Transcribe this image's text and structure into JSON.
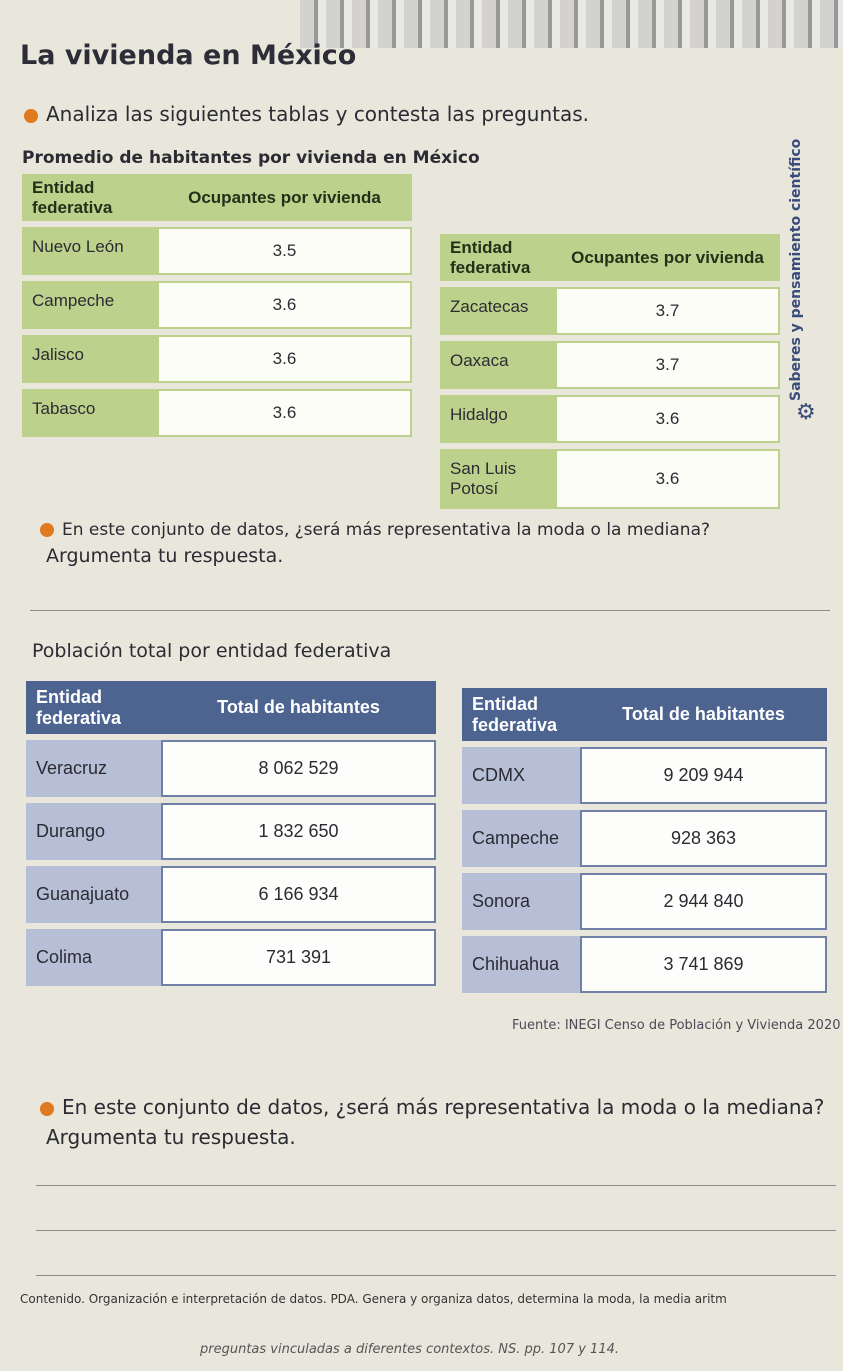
{
  "title": "La vivienda en México",
  "instruction": "Analiza las siguientes tablas y contesta las preguntas.",
  "section1": {
    "subtitle": "Promedio de habitantes por vivienda en México",
    "headers": {
      "entity": "Entidad federativa",
      "value": "Ocupantes por vivienda"
    },
    "left_rows": [
      {
        "entity": "Nuevo León",
        "value": "3.5"
      },
      {
        "entity": "Campeche",
        "value": "3.6"
      },
      {
        "entity": "Jalisco",
        "value": "3.6"
      },
      {
        "entity": "Tabasco",
        "value": "3.6"
      }
    ],
    "right_rows": [
      {
        "entity": "Zacatecas",
        "value": "3.7"
      },
      {
        "entity": "Oaxaca",
        "value": "3.7"
      },
      {
        "entity": "Hidalgo",
        "value": "3.6"
      },
      {
        "entity": "San Luis Potosí",
        "value": "3.6"
      }
    ],
    "question": "En este conjunto de datos, ¿será más representativa la moda o la mediana?",
    "question_2": "Argumenta tu respuesta."
  },
  "section2": {
    "subtitle": "Población total por entidad federativa",
    "headers": {
      "entity": "Entidad federativa",
      "value": "Total de habitantes"
    },
    "left_rows": [
      {
        "entity": "Veracruz",
        "value": "8 062 529"
      },
      {
        "entity": "Durango",
        "value": "1 832 650"
      },
      {
        "entity": "Guanajuato",
        "value": "6 166 934"
      },
      {
        "entity": "Colima",
        "value": "731 391"
      }
    ],
    "right_rows": [
      {
        "entity": "CDMX",
        "value": "9 209 944"
      },
      {
        "entity": "Campeche",
        "value": "928 363"
      },
      {
        "entity": "Sonora",
        "value": "2 944 840"
      },
      {
        "entity": "Chihuahua",
        "value": "3 741 869"
      }
    ],
    "source": "Fuente: INEGI Censo de Población y Vivienda 2020",
    "question": "En este conjunto de datos, ¿será más representativa la moda o la mediana?",
    "question_2": "Argumenta tu respuesta."
  },
  "side_label": "Saberes y pensamiento científico",
  "footer": "Contenido. Organización e interpretación de datos. PDA. Genera y organiza datos, determina la moda, la media aritm",
  "footer_2": "preguntas vinculadas a diferentes contextos. NS. pp. 107 y 114."
}
